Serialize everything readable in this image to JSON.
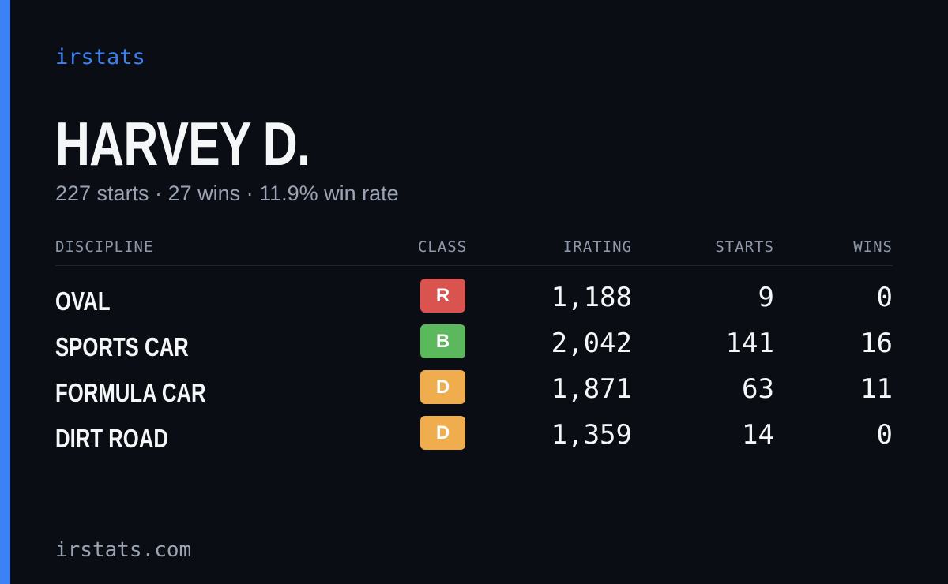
{
  "brand": "irstats",
  "player": {
    "name": "HARVEY D.",
    "summary": "227 starts · 27 wins · 11.9% win rate"
  },
  "table": {
    "headers": {
      "discipline": "DISCIPLINE",
      "class": "CLASS",
      "irating": "IRATING",
      "starts": "STARTS",
      "wins": "WINS"
    },
    "rows": [
      {
        "discipline": "OVAL",
        "class": "R",
        "class_color": "#d9534f",
        "irating": "1,188",
        "starts": "9",
        "wins": "0"
      },
      {
        "discipline": "SPORTS CAR",
        "class": "B",
        "class_color": "#5cb85c",
        "irating": "2,042",
        "starts": "141",
        "wins": "16"
      },
      {
        "discipline": "FORMULA CAR",
        "class": "D",
        "class_color": "#f0ad4e",
        "irating": "1,871",
        "starts": "63",
        "wins": "11"
      },
      {
        "discipline": "DIRT ROAD",
        "class": "D",
        "class_color": "#f0ad4e",
        "irating": "1,359",
        "starts": "14",
        "wins": "0"
      }
    ]
  },
  "footer": {
    "url": "irstats.com"
  },
  "colors": {
    "accent": "#3b82f6",
    "background": "#0a0d14"
  }
}
